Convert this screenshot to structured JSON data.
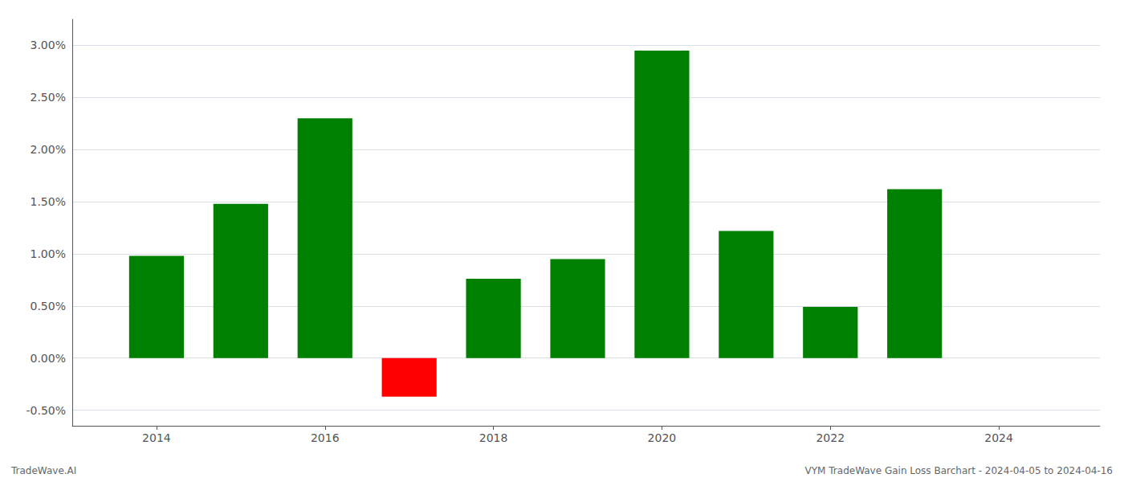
{
  "chart_data": {
    "type": "bar",
    "x": [
      2014,
      2015,
      2016,
      2017,
      2018,
      2019,
      2020,
      2021,
      2022,
      2023
    ],
    "values": [
      0.98,
      1.48,
      2.3,
      -0.37,
      0.76,
      0.95,
      2.95,
      1.22,
      0.49,
      1.62
    ],
    "colors": [
      "#008000",
      "#008000",
      "#008000",
      "#ff0000",
      "#008000",
      "#008000",
      "#008000",
      "#008000",
      "#008000",
      "#008000"
    ],
    "xlim": [
      2013.0,
      2025.2
    ],
    "xticks": [
      2014,
      2016,
      2018,
      2020,
      2022,
      2024
    ],
    "ylim": [
      -0.65,
      3.25
    ],
    "yticks": [
      {
        "value": -0.5,
        "label": "-0.50%"
      },
      {
        "value": 0.0,
        "label": "0.00%"
      },
      {
        "value": 0.5,
        "label": "0.50%"
      },
      {
        "value": 1.0,
        "label": "1.00%"
      },
      {
        "value": 1.5,
        "label": "1.50%"
      },
      {
        "value": 2.0,
        "label": "2.00%"
      },
      {
        "value": 2.5,
        "label": "2.50%"
      },
      {
        "value": 3.0,
        "label": "3.00%"
      }
    ],
    "grid": true,
    "annotations": [
      "TradeWave.AI",
      "VYM TradeWave Gain Loss Barchart - 2024-04-05 to 2024-04-16"
    ]
  }
}
